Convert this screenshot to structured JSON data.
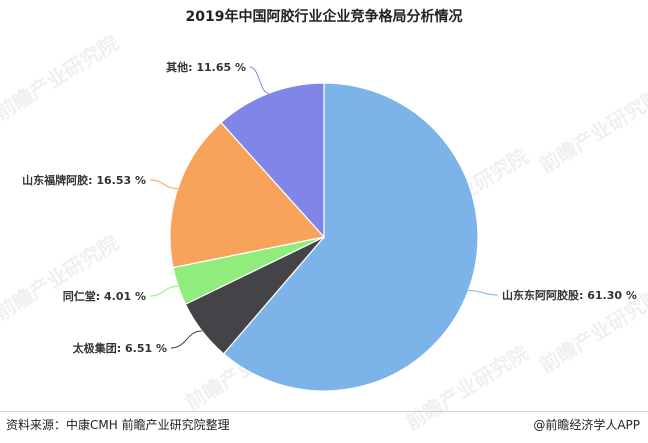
{
  "chart_data": {
    "type": "pie",
    "title": "2019年中国阿胶行业企业竞争格局分析情况",
    "unit": "%",
    "slices": [
      {
        "label": "山东东阿阿胶股",
        "value": 61.3,
        "display": "61.30 %",
        "color": "#7cb4ea"
      },
      {
        "label": "太极集团",
        "value": 6.51,
        "display": "6.51 %",
        "color": "#434348"
      },
      {
        "label": "同仁堂",
        "value": 4.01,
        "display": "4.01 %",
        "color": "#90ed7d"
      },
      {
        "label": "山东福牌阿胶",
        "value": 16.53,
        "display": "16.53 %",
        "color": "#f7a35c"
      },
      {
        "label": "其他",
        "value": 11.65,
        "display": "11.65 %",
        "color": "#8085e9"
      }
    ]
  },
  "watermark": "前瞻产业研究院",
  "footer": {
    "source": "资料来源：中康CMH 前瞻产业研究院整理",
    "app_credit": "@前瞻经济学人APP"
  }
}
